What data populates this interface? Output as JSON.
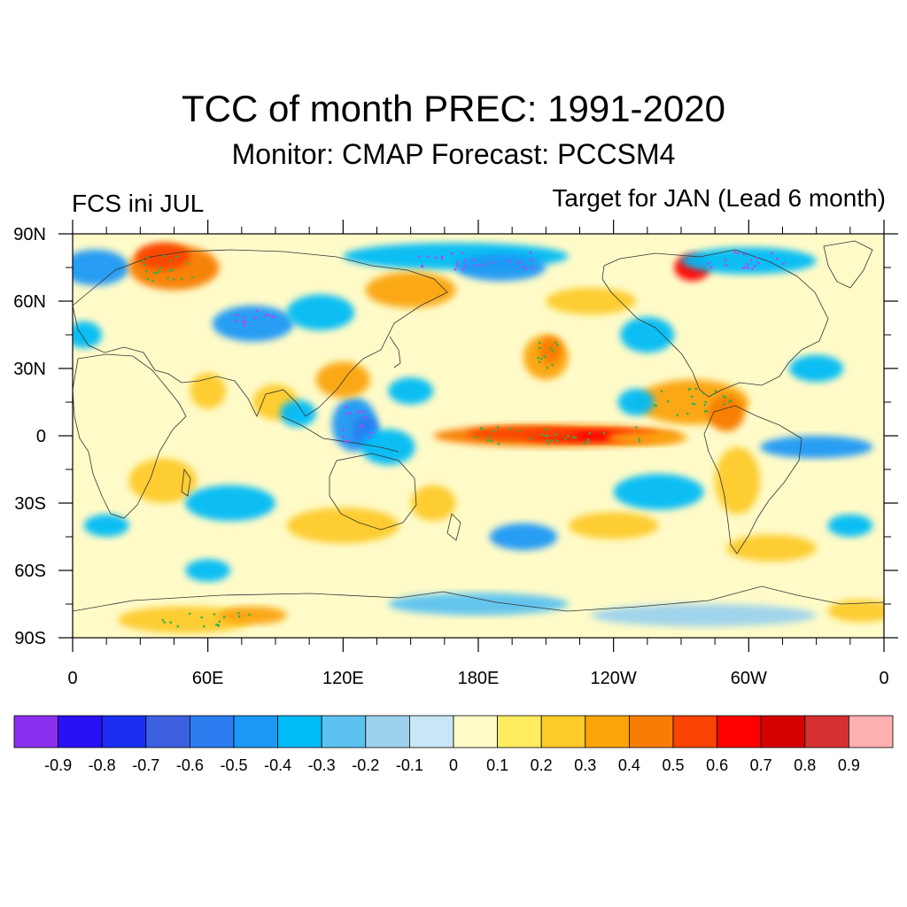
{
  "title": "TCC of month PREC: 1991-2020",
  "subtitle": "Monitor: CMAP   Forecast: PCCSM4",
  "left_label": "FCS ini JUL",
  "right_label": "Target for JAN (Lead 6 month)",
  "y_ticks": [
    "90N",
    "60N",
    "30N",
    "0",
    "30S",
    "60S",
    "90S"
  ],
  "x_ticks": [
    "0",
    "60E",
    "120E",
    "180E",
    "120W",
    "60W",
    "0"
  ],
  "colorbar": {
    "colors": [
      "#8b2ff0",
      "#2a10f6",
      "#1c2ef4",
      "#3d60e0",
      "#2c7ef0",
      "#1c98f6",
      "#00bbf6",
      "#5cc2f0",
      "#9cd2ee",
      "#c8e6f6",
      "#fefbc8",
      "#ffec60",
      "#fdcb2a",
      "#fba40a",
      "#f87d05",
      "#f94404",
      "#fe0000",
      "#d50000",
      "#d53131",
      "#ffb0b0"
    ],
    "labels": [
      "-0.9",
      "-0.8",
      "-0.7",
      "-0.6",
      "-0.5",
      "-0.4",
      "-0.3",
      "-0.2",
      "-0.1",
      "0",
      "0.1",
      "0.2",
      "0.3",
      "0.4",
      "0.5",
      "0.6",
      "0.7",
      "0.8",
      "0.9"
    ]
  }
}
